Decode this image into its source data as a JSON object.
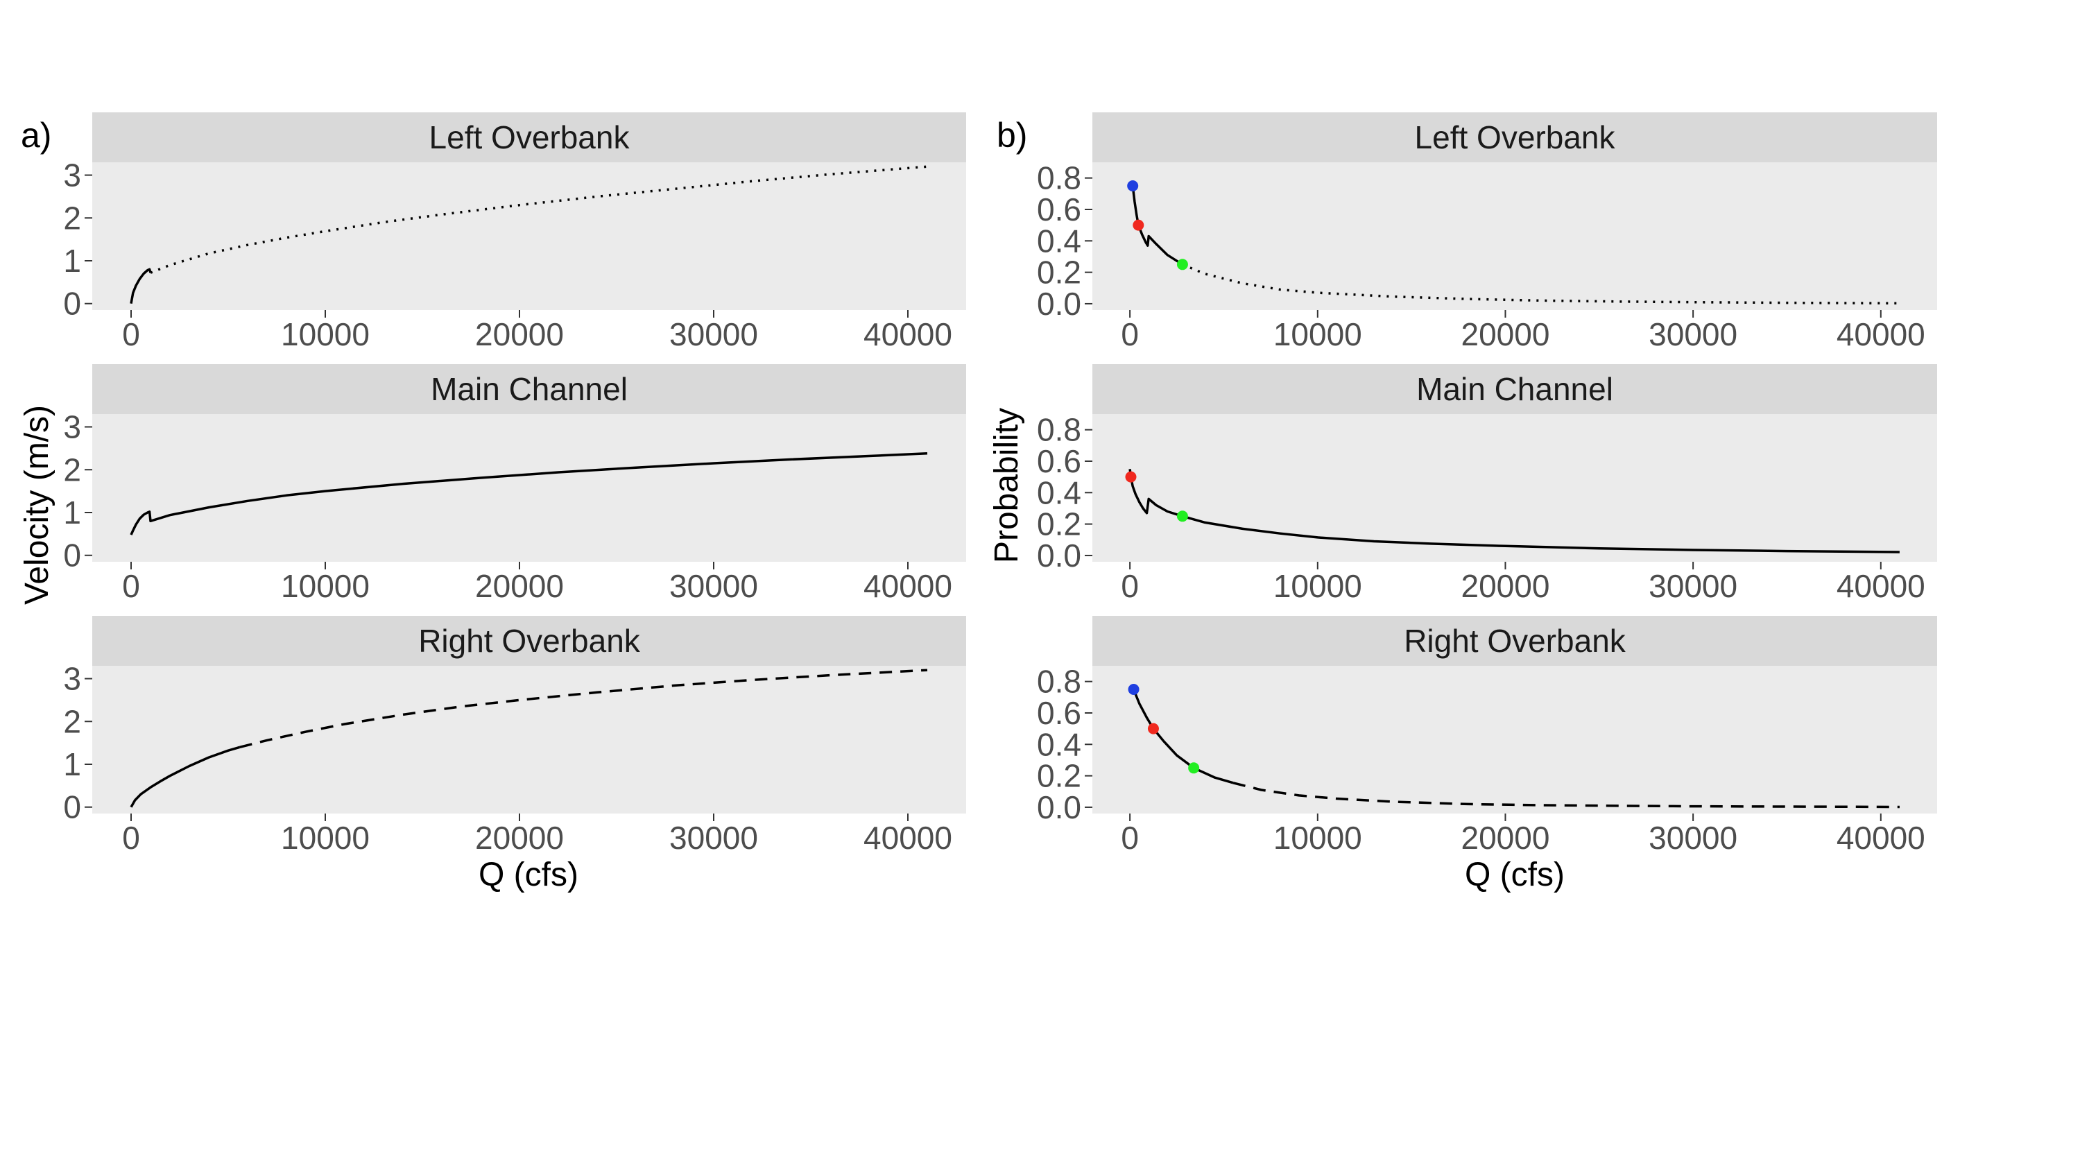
{
  "figure": {
    "panel_tags": [
      "a)",
      "b)"
    ],
    "left_ylabel": "Velocity (m/s)",
    "right_ylabel": "Probability",
    "xlabel": "Q (cfs)"
  },
  "colors": {
    "panel_bg": "#ebebeb",
    "strip_bg": "#d9d9d9",
    "line": "#000000",
    "point_blue": "#1f3fe0",
    "point_red": "#f0281e",
    "point_green": "#22ee22"
  },
  "chart_data": [
    {
      "type": "line",
      "title": "Left Overbank",
      "xlabel": "",
      "ylabel": "Velocity (m/s)",
      "xlim": [
        -2000,
        43000
      ],
      "ylim": [
        -0.15,
        3.3
      ],
      "xticks": [
        0,
        10000,
        20000,
        30000,
        40000
      ],
      "yticks": [
        0,
        1,
        2,
        3
      ],
      "grid": false,
      "series": [
        {
          "linestyle": "solid",
          "points": [
            [
              0,
              0
            ],
            [
              100,
              0.25
            ],
            [
              250,
              0.42
            ],
            [
              450,
              0.58
            ],
            [
              650,
              0.7
            ],
            [
              850,
              0.78
            ],
            [
              950,
              0.8
            ],
            [
              1000,
              0.72
            ]
          ]
        },
        {
          "linestyle": "dotted",
          "points": [
            [
              1000,
              0.72
            ],
            [
              2000,
              0.9
            ],
            [
              4000,
              1.17
            ],
            [
              6000,
              1.37
            ],
            [
              8000,
              1.54
            ],
            [
              10000,
              1.69
            ],
            [
              13000,
              1.9
            ],
            [
              16000,
              2.08
            ],
            [
              20000,
              2.3
            ],
            [
              24000,
              2.5
            ],
            [
              28000,
              2.68
            ],
            [
              32000,
              2.86
            ],
            [
              36000,
              3.02
            ],
            [
              41000,
              3.2
            ]
          ]
        }
      ]
    },
    {
      "type": "line",
      "title": "Main Channel",
      "xlabel": "",
      "ylabel": "Velocity (m/s)",
      "xlim": [
        -2000,
        43000
      ],
      "ylim": [
        -0.15,
        3.3
      ],
      "xticks": [
        0,
        10000,
        20000,
        30000,
        40000
      ],
      "yticks": [
        0,
        1,
        2,
        3
      ],
      "grid": false,
      "series": [
        {
          "linestyle": "solid",
          "points": [
            [
              0,
              0.48
            ],
            [
              100,
              0.58
            ],
            [
              250,
              0.72
            ],
            [
              450,
              0.86
            ],
            [
              650,
              0.95
            ],
            [
              850,
              1.0
            ],
            [
              950,
              1.02
            ],
            [
              1000,
              0.8
            ],
            [
              2000,
              0.94
            ],
            [
              4000,
              1.12
            ],
            [
              6000,
              1.27
            ],
            [
              8000,
              1.4
            ],
            [
              10000,
              1.5
            ],
            [
              14000,
              1.67
            ],
            [
              18000,
              1.81
            ],
            [
              22000,
              1.94
            ],
            [
              26000,
              2.05
            ],
            [
              30000,
              2.15
            ],
            [
              34000,
              2.24
            ],
            [
              38000,
              2.32
            ],
            [
              41000,
              2.38
            ]
          ]
        }
      ]
    },
    {
      "type": "line",
      "title": "Right Overbank",
      "xlabel": "Q (cfs)",
      "ylabel": "Velocity (m/s)",
      "xlim": [
        -2000,
        43000
      ],
      "ylim": [
        -0.15,
        3.3
      ],
      "xticks": [
        0,
        10000,
        20000,
        30000,
        40000
      ],
      "yticks": [
        0,
        1,
        2,
        3
      ],
      "grid": false,
      "series": [
        {
          "linestyle": "solid",
          "points": [
            [
              0,
              0
            ],
            [
              200,
              0.16
            ],
            [
              500,
              0.3
            ],
            [
              1000,
              0.46
            ],
            [
              1500,
              0.6
            ],
            [
              2000,
              0.73
            ],
            [
              3000,
              0.96
            ],
            [
              4000,
              1.16
            ],
            [
              5000,
              1.32
            ],
            [
              5600,
              1.4
            ]
          ]
        },
        {
          "linestyle": "dashed",
          "points": [
            [
              5600,
              1.4
            ],
            [
              7000,
              1.56
            ],
            [
              9000,
              1.76
            ],
            [
              11000,
              1.94
            ],
            [
              14000,
              2.16
            ],
            [
              17000,
              2.35
            ],
            [
              20000,
              2.5
            ],
            [
              24000,
              2.68
            ],
            [
              28000,
              2.84
            ],
            [
              32000,
              2.97
            ],
            [
              36000,
              3.08
            ],
            [
              41000,
              3.2
            ]
          ]
        }
      ]
    },
    {
      "type": "line",
      "title": "Left Overbank",
      "xlabel": "",
      "ylabel": "Probability",
      "xlim": [
        -2000,
        43000
      ],
      "ylim": [
        -0.04,
        0.9
      ],
      "xticks": [
        0,
        10000,
        20000,
        30000,
        40000
      ],
      "yticks": [
        0.0,
        0.2,
        0.4,
        0.6,
        0.8
      ],
      "grid": false,
      "series": [
        {
          "linestyle": "solid",
          "points": [
            [
              150,
              0.75
            ],
            [
              250,
              0.65
            ],
            [
              350,
              0.57
            ],
            [
              450,
              0.5
            ],
            [
              650,
              0.44
            ],
            [
              850,
              0.39
            ],
            [
              950,
              0.37
            ],
            [
              1000,
              0.43
            ],
            [
              1400,
              0.38
            ],
            [
              2000,
              0.31
            ],
            [
              2800,
              0.25
            ]
          ]
        },
        {
          "linestyle": "dotted",
          "points": [
            [
              2800,
              0.25
            ],
            [
              4000,
              0.19
            ],
            [
              6000,
              0.13
            ],
            [
              8000,
              0.09
            ],
            [
              10000,
              0.07
            ],
            [
              14000,
              0.045
            ],
            [
              18000,
              0.03
            ],
            [
              22000,
              0.02
            ],
            [
              26000,
              0.014
            ],
            [
              30000,
              0.01
            ],
            [
              35000,
              0.006
            ],
            [
              41000,
              0.003
            ]
          ]
        }
      ],
      "points": [
        {
          "x": 150,
          "y": 0.75,
          "color": "#1f3fe0"
        },
        {
          "x": 450,
          "y": 0.5,
          "color": "#f0281e"
        },
        {
          "x": 2800,
          "y": 0.25,
          "color": "#22ee22"
        }
      ]
    },
    {
      "type": "line",
      "title": "Main Channel",
      "xlabel": "",
      "ylabel": "Probability",
      "xlim": [
        -2000,
        43000
      ],
      "ylim": [
        -0.04,
        0.9
      ],
      "xticks": [
        0,
        10000,
        20000,
        30000,
        40000
      ],
      "yticks": [
        0.0,
        0.2,
        0.4,
        0.6,
        0.8
      ],
      "grid": false,
      "series": [
        {
          "linestyle": "solid",
          "points": [
            [
              0,
              0.55
            ],
            [
              50,
              0.5
            ],
            [
              150,
              0.44
            ],
            [
              300,
              0.39
            ],
            [
              500,
              0.34
            ],
            [
              700,
              0.3
            ],
            [
              900,
              0.27
            ],
            [
              1000,
              0.36
            ],
            [
              1400,
              0.32
            ],
            [
              2000,
              0.28
            ],
            [
              2800,
              0.25
            ],
            [
              4000,
              0.21
            ],
            [
              6000,
              0.17
            ],
            [
              8000,
              0.14
            ],
            [
              10000,
              0.115
            ],
            [
              13000,
              0.09
            ],
            [
              16000,
              0.075
            ],
            [
              20000,
              0.06
            ],
            [
              25000,
              0.045
            ],
            [
              30000,
              0.035
            ],
            [
              35000,
              0.028
            ],
            [
              41000,
              0.022
            ]
          ]
        }
      ],
      "points": [
        {
          "x": 50,
          "y": 0.5,
          "color": "#f0281e"
        },
        {
          "x": 2800,
          "y": 0.25,
          "color": "#22ee22"
        }
      ]
    },
    {
      "type": "line",
      "title": "Right Overbank",
      "xlabel": "Q (cfs)",
      "ylabel": "Probability",
      "xlim": [
        -2000,
        43000
      ],
      "ylim": [
        -0.04,
        0.9
      ],
      "xticks": [
        0,
        10000,
        20000,
        30000,
        40000
      ],
      "yticks": [
        0.0,
        0.2,
        0.4,
        0.6,
        0.8
      ],
      "grid": false,
      "series": [
        {
          "linestyle": "solid",
          "points": [
            [
              200,
              0.75
            ],
            [
              500,
              0.66
            ],
            [
              900,
              0.57
            ],
            [
              1250,
              0.5
            ],
            [
              1800,
              0.42
            ],
            [
              2500,
              0.33
            ],
            [
              3400,
              0.25
            ],
            [
              4500,
              0.19
            ],
            [
              5500,
              0.155
            ]
          ]
        },
        {
          "linestyle": "dashed",
          "points": [
            [
              5500,
              0.155
            ],
            [
              7000,
              0.11
            ],
            [
              9000,
              0.075
            ],
            [
              11000,
              0.055
            ],
            [
              14000,
              0.035
            ],
            [
              18000,
              0.02
            ],
            [
              22000,
              0.013
            ],
            [
              26000,
              0.009
            ],
            [
              30000,
              0.006
            ],
            [
              35000,
              0.004
            ],
            [
              41000,
              0.002
            ]
          ]
        }
      ],
      "points": [
        {
          "x": 200,
          "y": 0.75,
          "color": "#1f3fe0"
        },
        {
          "x": 1250,
          "y": 0.5,
          "color": "#f0281e"
        },
        {
          "x": 3400,
          "y": 0.25,
          "color": "#22ee22"
        }
      ]
    }
  ]
}
